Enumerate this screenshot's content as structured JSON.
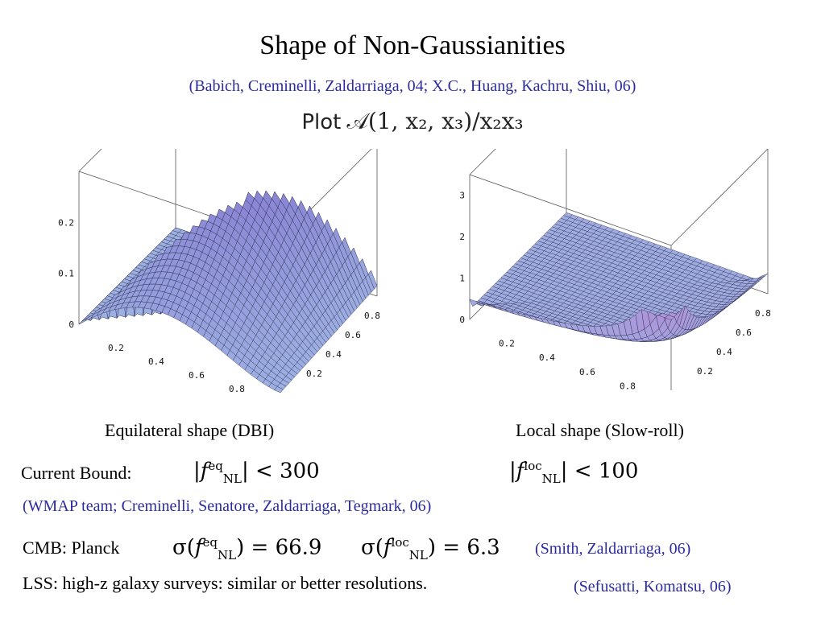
{
  "slide": {
    "title": "Shape of Non-Gaussianities",
    "refs_top": "(Babich, Creminelli, Zaldarriaga, 04; X.C., Huang, Kachru, Shiu, 06)",
    "plot_word": "Plot",
    "plot_formula": "𝒜(1, x₂, x₃)/x₂x₃",
    "current_bound_label": "Current Bound:",
    "refs_wmap": "(WMAP team; Creminelli, Senatore, Zaldarriaga, Tegmark, 06)",
    "cmb_label": "CMB: Planck",
    "refs_smith": "(Smith, Zaldarriaga, 06)",
    "lss_text": "LSS:  high-z galaxy surveys:  similar or better resolutions.",
    "refs_sefusatti": "(Sefusatti, Komatsu, 06)"
  },
  "bounds": {
    "eq": {
      "f": "f",
      "sup": "eq",
      "sub": "NL",
      "op": " < ",
      "value": "300"
    },
    "loc": {
      "f": "f",
      "sup": "loc",
      "sub": "NL",
      "op": " < ",
      "value": "100"
    }
  },
  "sigmas": {
    "eq": {
      "lead": "σ(",
      "f": "f",
      "sup": "eq",
      "sub": "NL",
      "tail": ")  =  ",
      "value": "66.9"
    },
    "loc": {
      "lead": "σ(",
      "f": "f",
      "sup": "loc",
      "sub": "NL",
      "tail": ")  =  ",
      "value": "6.3"
    }
  },
  "colors": {
    "surface_fill": "#9db0e2",
    "surface_ridge": "#6f78c8",
    "mesh": "#1a1a3a",
    "refs": "#2c2ca0",
    "warm_edge": "#e8b0a0"
  },
  "chart_data": [
    {
      "type": "surface3d",
      "caption": "Equilateral shape (DBI)",
      "x2_ticks": [
        "0.2",
        "0.4",
        "0.6",
        "0.8"
      ],
      "x3_ticks": [
        "0.2",
        "0.4",
        "0.6",
        "0.8"
      ],
      "z_ticks": [
        "0",
        "0.1",
        "0.2"
      ],
      "zlim": [
        0,
        0.3
      ],
      "xlim": [
        0,
        1
      ],
      "ylim": [
        0,
        1
      ]
    },
    {
      "type": "surface3d",
      "caption": "Local shape (Slow-roll)",
      "x2_ticks": [
        "0.2",
        "0.4",
        "0.6",
        "0.8"
      ],
      "x3_ticks": [
        "0.2",
        "0.4",
        "0.6",
        "0.8"
      ],
      "z_ticks": [
        "0",
        "1",
        "2",
        "3"
      ],
      "zlim": [
        0,
        3.5
      ],
      "xlim": [
        0,
        1
      ],
      "ylim": [
        0,
        1
      ]
    }
  ]
}
